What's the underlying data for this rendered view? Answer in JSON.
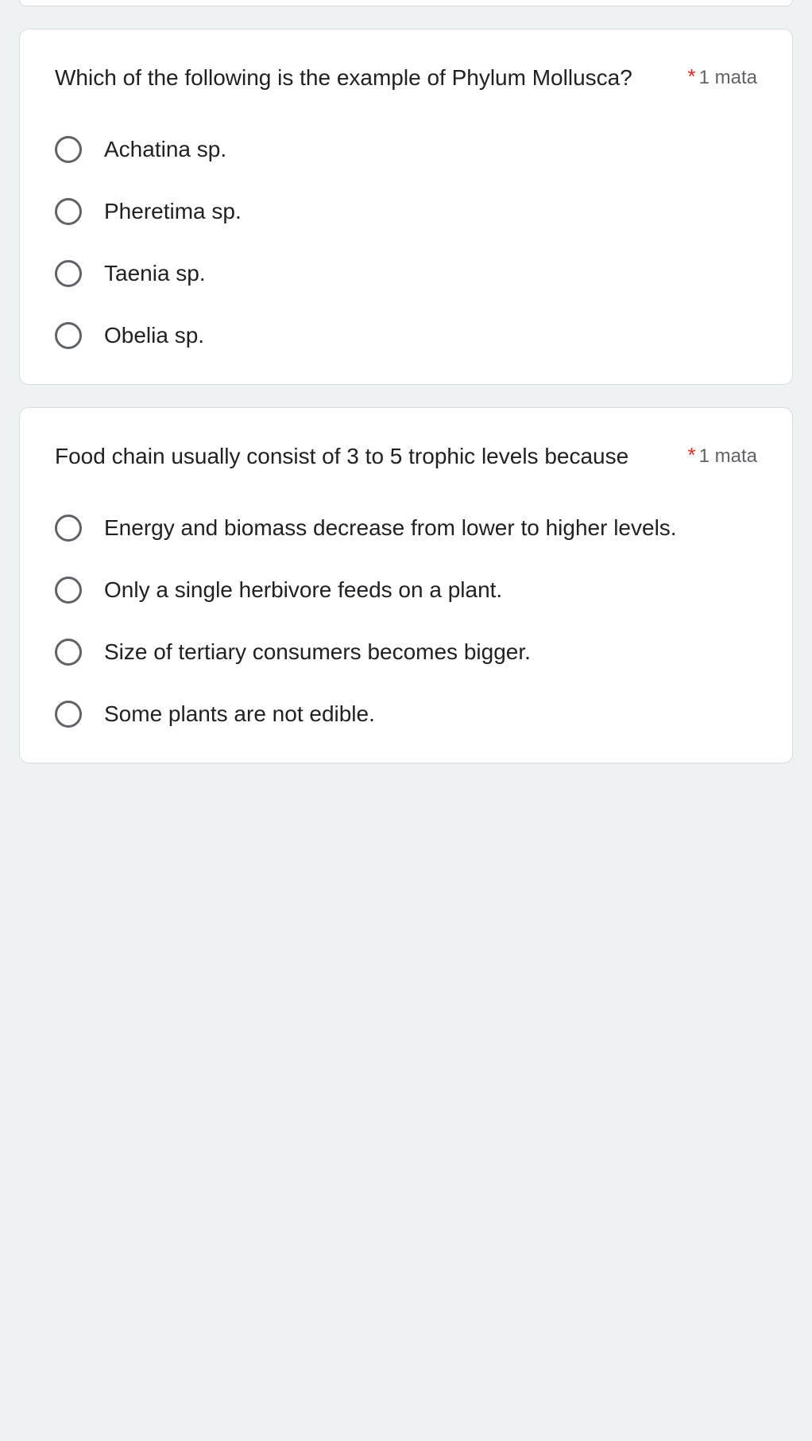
{
  "colors": {
    "background": "#eef2f3",
    "card_background": "#ffffff",
    "card_border": "#dadce0",
    "text_primary": "#202124",
    "text_secondary": "#5f6368",
    "required": "#d93025",
    "radio_border": "#5f6368"
  },
  "questions": [
    {
      "text": "Which of the following is the example of Phylum Mollusca?",
      "required": true,
      "points_label": "1 mata",
      "options": [
        "Achatina sp.",
        "Pheretima sp.",
        "Taenia sp.",
        "Obelia sp."
      ]
    },
    {
      "text": "Food chain usually consist of 3 to 5 trophic levels because",
      "required": true,
      "points_label": "1 mata",
      "options": [
        "Energy and biomass decrease from lower to higher levels.",
        "Only a single herbivore feeds on a plant.",
        "Size of tertiary consumers becomes bigger.",
        "Some plants are not edible."
      ]
    }
  ],
  "required_marker": "*"
}
